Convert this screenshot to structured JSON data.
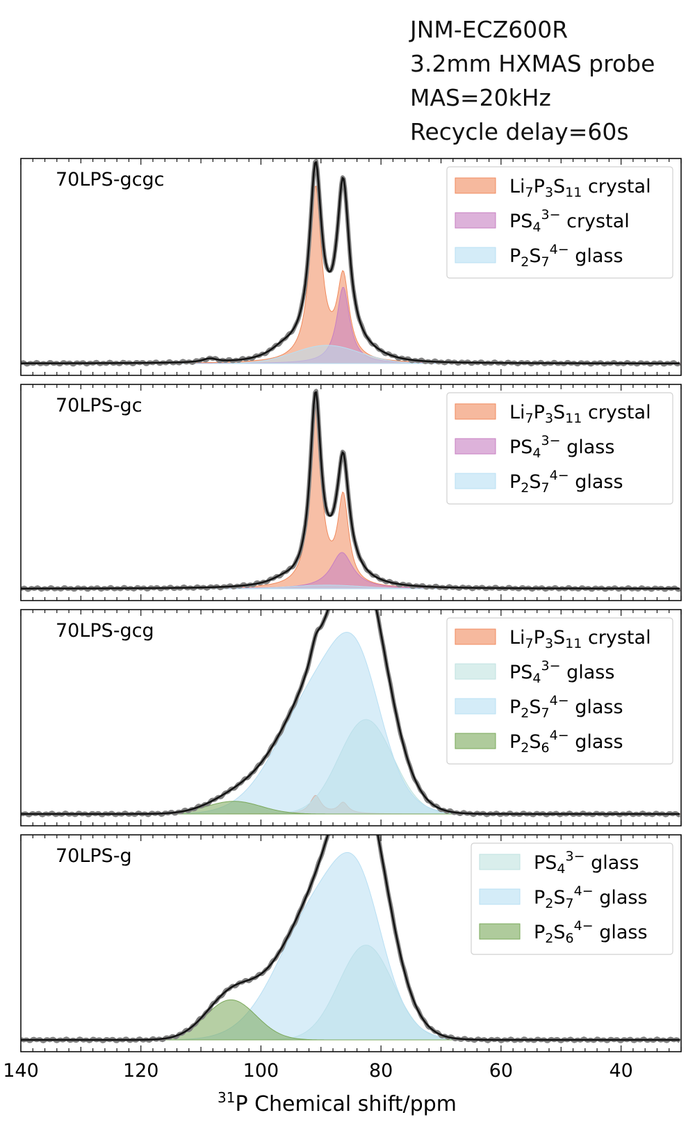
{
  "instrument": {
    "lines": [
      "JNM-ECZ600R",
      "3.2mm HXMAS probe",
      "MAS=20kHz",
      "Recycle delay=60s"
    ]
  },
  "colors": {
    "Li7P3S11 crystal": "#f08a5d",
    "PS4 crystal": "#c77fc2",
    "PS4 glass (purple)": "#c77fc2",
    "PS4 glass": "#bfe2e0",
    "P2S7 glass": "#b8dff3",
    "P2S6 glass": "#7aa85a",
    "measured": "#7f7f7f",
    "fit": "#111111"
  },
  "chart_data": [
    {
      "type": "line",
      "panel_label": "70LPS-gcgc",
      "xlabel": "31P Chemical shift/ppm",
      "xlim": [
        140,
        30
      ],
      "xticks": [
        140,
        120,
        100,
        80,
        60,
        40
      ],
      "series": [
        {
          "name": "Li7P3S11 crystal",
          "display": {
            "base": "Li",
            "sub1": "7",
            "mid": "P",
            "sub2": "3",
            "mid2": "S",
            "sub3": "11",
            "tail": " crystal"
          },
          "color": "#f08a5d",
          "peaks": [
            {
              "center": 90.9,
              "width": 1.2,
              "height": 0.95
            },
            {
              "center": 86.3,
              "width": 1.2,
              "height": 0.45
            }
          ]
        },
        {
          "name": "PS4 3- crystal",
          "display": {
            "base": "PS",
            "sub1": "4",
            "sup": "3−",
            "tail": " crystal"
          },
          "color": "#c77fc2",
          "peaks": [
            {
              "center": 86.3,
              "width": 1.3,
              "height": 0.42
            }
          ]
        },
        {
          "name": "P2S7 4- glass",
          "display": {
            "base": "P",
            "sub1": "2",
            "mid": "S",
            "sub2": "7",
            "sup": "4−",
            "tail": " glass"
          },
          "color": "#b8dff3",
          "peaks": [
            {
              "center": 89,
              "width": 5.5,
              "height": 0.1
            }
          ]
        }
      ],
      "measured_peaks": [
        {
          "center": 108.5,
          "width": 1.5,
          "height": 0.02
        },
        {
          "center": 96.5,
          "width": 2.5,
          "height": 0.03
        }
      ],
      "legend_position": "top-right"
    },
    {
      "type": "line",
      "panel_label": "70LPS-gc",
      "xlabel": "31P Chemical shift/ppm",
      "xlim": [
        140,
        30
      ],
      "series": [
        {
          "name": "Li7P3S11 crystal",
          "display": {
            "base": "Li",
            "sub1": "7",
            "mid": "P",
            "sub2": "3",
            "mid2": "S",
            "sub3": "11",
            "tail": " crystal"
          },
          "color": "#f08a5d",
          "peaks": [
            {
              "center": 90.9,
              "width": 1.1,
              "height": 1.0
            },
            {
              "center": 86.3,
              "width": 1.1,
              "height": 0.48
            }
          ]
        },
        {
          "name": "PS4 3- glass",
          "display": {
            "base": "PS",
            "sub1": "4",
            "sup": "3−",
            "tail": " glass"
          },
          "color": "#c77fc2",
          "peaks": [
            {
              "center": 86.5,
              "width": 2.2,
              "height": 0.2
            }
          ]
        },
        {
          "name": "P2S7 4- glass",
          "display": {
            "base": "P",
            "sub1": "2",
            "mid": "S",
            "sub2": "7",
            "sup": "4−",
            "tail": " glass"
          },
          "color": "#b8dff3",
          "peaks": [
            {
              "center": 89,
              "width": 6,
              "height": 0.02
            }
          ]
        }
      ],
      "measured_peaks": [
        {
          "center": 96.5,
          "width": 2.5,
          "height": 0.02
        }
      ],
      "legend_position": "top-right"
    },
    {
      "type": "line",
      "panel_label": "70LPS-gcg",
      "xlabel": "31P Chemical shift/ppm",
      "xlim": [
        140,
        30
      ],
      "series": [
        {
          "name": "Li7P3S11 crystal",
          "display": {
            "base": "Li",
            "sub1": "7",
            "mid": "P",
            "sub2": "3",
            "mid2": "S",
            "sub3": "11",
            "tail": " crystal"
          },
          "color": "#f08a5d",
          "peaks": [
            {
              "center": 90.9,
              "width": 1.1,
              "height": 0.1
            },
            {
              "center": 86.3,
              "width": 1.0,
              "height": 0.06
            }
          ]
        },
        {
          "name": "PS4 3- glass",
          "display": {
            "base": "PS",
            "sub1": "4",
            "sup": "3−",
            "tail": " glass"
          },
          "color": "#bfe2e0",
          "peaks": [
            {
              "center": 82.5,
              "width": 4.5,
              "height": 0.52
            }
          ]
        },
        {
          "name": "P2S7 4- glass",
          "display": {
            "base": "P",
            "sub1": "2",
            "mid": "S",
            "sub2": "7",
            "sup": "4−",
            "tail": " glass"
          },
          "color": "#b8dff3",
          "peaks": [
            {
              "center": 89.5,
              "width": 7,
              "height": 0.73
            },
            {
              "center": 83.8,
              "width": 3.8,
              "height": 0.42
            }
          ]
        },
        {
          "name": "P2S6 4- glass",
          "display": {
            "base": "P",
            "sub1": "2",
            "mid": "S",
            "sub2": "6",
            "sup": "4−",
            "tail": " glass"
          },
          "color": "#7aa85a",
          "peaks": [
            {
              "center": 104.5,
              "width": 4.5,
              "height": 0.07
            }
          ]
        }
      ],
      "legend_position": "top-right"
    },
    {
      "type": "line",
      "panel_label": "70LPS-g",
      "xlabel": "31P Chemical shift/ppm",
      "xlim": [
        140,
        30
      ],
      "series": [
        {
          "name": "PS4 3- glass",
          "display": {
            "base": "PS",
            "sub1": "4",
            "sup": "3−",
            "tail": " glass"
          },
          "color": "#bfe2e0",
          "peaks": [
            {
              "center": 82.5,
              "width": 4.5,
              "height": 0.52
            }
          ]
        },
        {
          "name": "P2S7 4- glass",
          "display": {
            "base": "P",
            "sub1": "2",
            "mid": "S",
            "sub2": "7",
            "sup": "4−",
            "tail": " glass"
          },
          "color": "#b8dff3",
          "peaks": [
            {
              "center": 89.5,
              "width": 7,
              "height": 0.78
            },
            {
              "center": 83.5,
              "width": 3.8,
              "height": 0.42
            }
          ]
        },
        {
          "name": "P2S6 4- glass",
          "display": {
            "base": "P",
            "sub1": "2",
            "mid": "S",
            "sub2": "6",
            "sup": "4−",
            "tail": " glass"
          },
          "color": "#7aa85a",
          "peaks": [
            {
              "center": 105,
              "width": 4.2,
              "height": 0.22
            }
          ]
        }
      ],
      "legend_position": "top-right"
    }
  ],
  "axis": {
    "xlabel_sup": "31",
    "xlabel_rest": "P Chemical shift/ppm"
  }
}
